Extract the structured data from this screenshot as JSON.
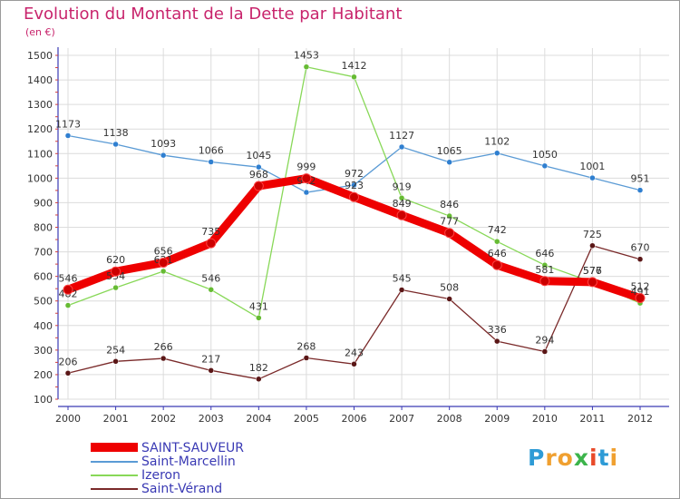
{
  "header": {
    "title": "Evolution du Montant de la Dette par Habitant",
    "subtitle": "(en €)"
  },
  "colors": {
    "title": "#c8246c",
    "axis": "#3a3ab4",
    "grid": "#dcdcdc",
    "tick_text": "#333333",
    "legend_text": "#3a3ab4"
  },
  "logo": {
    "letters": [
      "P",
      "r",
      "o",
      "x",
      "i",
      "t",
      "i"
    ],
    "colors": [
      "#2e9bd6",
      "#f0a030",
      "#f0a030",
      "#3cb44b",
      "#e84a2a",
      "#2e9bd6",
      "#f0a030"
    ]
  },
  "chart_data": {
    "type": "line",
    "title": "Evolution du Montant de la Dette par Habitant",
    "subtitle": "(en €)",
    "x": [
      "2000",
      "2001",
      "2002",
      "2003",
      "2004",
      "2005",
      "2006",
      "2007",
      "2008",
      "2009",
      "2010",
      "2011",
      "2012"
    ],
    "ylim": [
      100,
      1500
    ],
    "yticks": [
      100,
      200,
      300,
      400,
      500,
      600,
      700,
      800,
      900,
      1000,
      1100,
      1200,
      1300,
      1400,
      1500
    ],
    "grid": true,
    "legend_position": "bottom-left",
    "series": [
      {
        "name": "Saint-Marcellin",
        "color": "#5b9bd5",
        "point_color": "#2f7fd0",
        "values": [
          1173,
          1138,
          1093,
          1066,
          1045,
          942,
          972,
          1127,
          1065,
          1102,
          1050,
          1001,
          951
        ],
        "labels": [
          "1173",
          "1138",
          "1093",
          "1066",
          "1045",
          "942",
          "972",
          "1127",
          "1065",
          "1102",
          "1050",
          "1001",
          "951"
        ]
      },
      {
        "name": "Izeron",
        "color": "#88d858",
        "point_color": "#66bb33",
        "values": [
          482,
          554,
          621,
          546,
          431,
          1453,
          1412,
          919,
          846,
          742,
          646,
          576,
          491
        ],
        "labels": [
          "482",
          "554",
          "621",
          "546",
          "431",
          "1453",
          "1412",
          "919",
          "846",
          "742",
          "646",
          "576",
          "491"
        ]
      },
      {
        "name": "Saint-Vérand",
        "color": "#7a2a2a",
        "point_color": "#5a1616",
        "values": [
          206,
          254,
          266,
          217,
          182,
          268,
          243,
          545,
          508,
          336,
          294,
          725,
          670
        ],
        "labels": [
          "206",
          "254",
          "266",
          "217",
          "182",
          "268",
          "243",
          "545",
          "508",
          "336",
          "294",
          "725",
          "670"
        ]
      },
      {
        "name": "SAINT-SAUVEUR",
        "color": "#ee0000",
        "point_color": "#cc0000",
        "thick": true,
        "values": [
          546,
          620,
          656,
          735,
          968,
          999,
          923,
          849,
          777,
          646,
          581,
          577,
          512
        ],
        "labels": [
          "546",
          "620",
          "656",
          "735",
          "968",
          "999",
          "923",
          "849",
          "777",
          "646",
          "581",
          "577",
          "512"
        ]
      }
    ],
    "legend": [
      {
        "name": "SAINT-SAUVEUR",
        "color": "#ee0000",
        "thick": true
      },
      {
        "name": "Saint-Marcellin",
        "color": "#5b9bd5"
      },
      {
        "name": "Izeron",
        "color": "#88d858"
      },
      {
        "name": "Saint-Vérand",
        "color": "#7a2a2a"
      }
    ]
  }
}
